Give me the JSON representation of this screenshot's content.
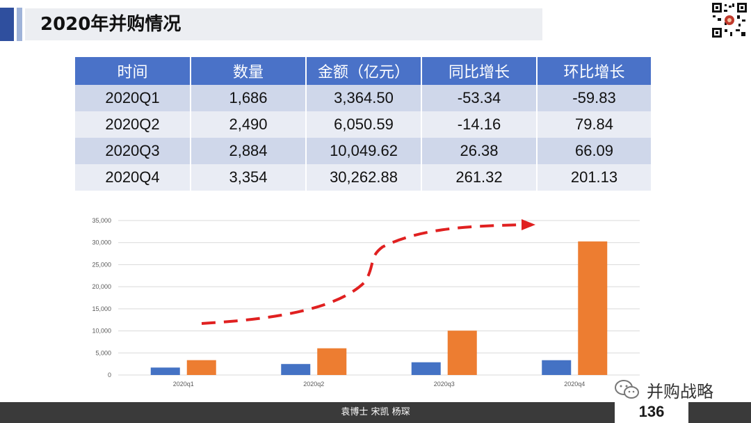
{
  "header": {
    "title": "2020年并购情况"
  },
  "table": {
    "headers": [
      "时间",
      "数量",
      "金额（亿元）",
      "同比增长",
      "环比增长"
    ],
    "rows": [
      [
        "2020Q1",
        "1,686",
        "3,364.50",
        "-53.34",
        "-59.83"
      ],
      [
        "2020Q2",
        "2,490",
        "6,050.59",
        "-14.16",
        "79.84"
      ],
      [
        "2020Q3",
        "2,884",
        "10,049.62",
        "26.38",
        "66.09"
      ],
      [
        "2020Q4",
        "3,354",
        "30,262.88",
        "261.32",
        "201.13"
      ]
    ]
  },
  "chart_data": {
    "type": "bar",
    "categories": [
      "2020q1",
      "2020q2",
      "2020q3",
      "2020q4"
    ],
    "series": [
      {
        "values": [
          1686,
          2490,
          2884,
          3354
        ],
        "color": "#4472c4"
      },
      {
        "values": [
          3364.5,
          6050.59,
          10049.62,
          30262.88
        ],
        "color": "#ed7d31"
      }
    ],
    "ylim": [
      0,
      35000
    ],
    "yticks": [
      "0",
      "5,000",
      "10,000",
      "15,000",
      "20,000",
      "25,000",
      "30,000",
      "35,000"
    ],
    "grid": true,
    "annotation": {
      "type": "dashed-arrow",
      "color": "#e02020"
    }
  },
  "watermark": {
    "text": "并购战略"
  },
  "footer": {
    "authors": "袁博士  宋凯  杨琛",
    "page_number": "136"
  }
}
